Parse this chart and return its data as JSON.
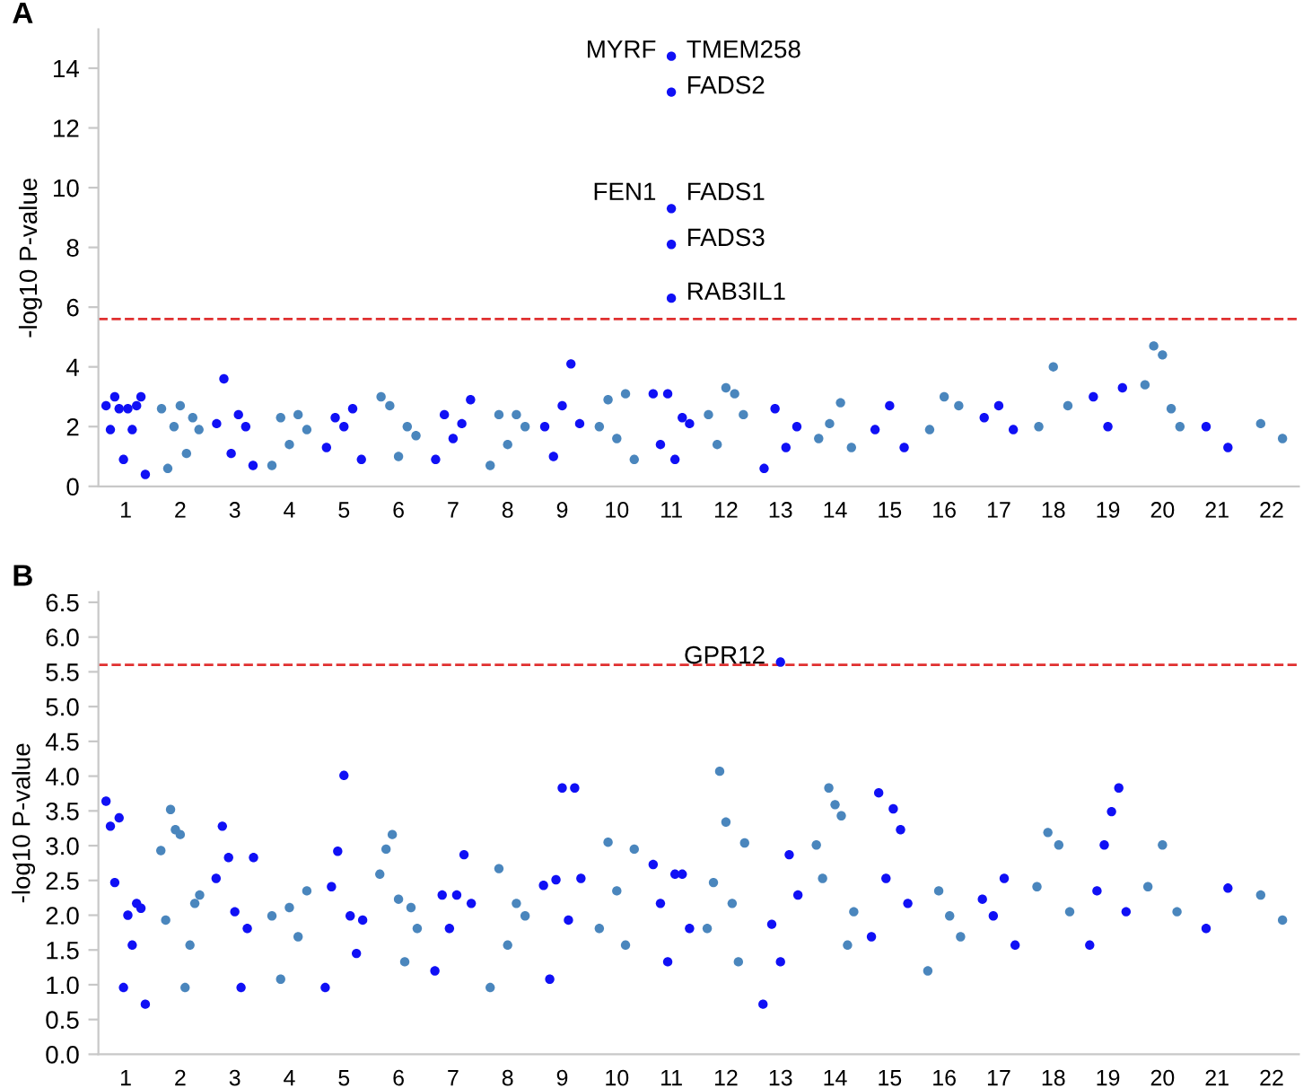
{
  "chart_data": [
    {
      "type": "scatter",
      "title": "A",
      "ylabel": "-log10 P-value",
      "marker": "circle",
      "legend": false,
      "grid": false,
      "categories": [
        "1",
        "2",
        "3",
        "4",
        "5",
        "6",
        "7",
        "8",
        "9",
        "10",
        "11",
        "12",
        "13",
        "14",
        "15",
        "16",
        "17",
        "18",
        "19",
        "20",
        "21",
        "22"
      ],
      "ylim": [
        0,
        15.3
      ],
      "yticks": [
        0,
        2,
        4,
        6,
        8,
        10,
        12,
        14
      ],
      "series": [
        {
          "color": "#1010f5",
          "x": [
            "1",
            "1",
            "1",
            "1",
            "1",
            "1",
            "1",
            "1",
            "1",
            "1",
            "3",
            "3",
            "3",
            "3",
            "3",
            "3",
            "5",
            "5",
            "5",
            "5",
            "5",
            "7",
            "7",
            "7",
            "7",
            "7",
            "9",
            "9",
            "9",
            "9",
            "9",
            "11",
            "11",
            "11",
            "11",
            "11",
            "11",
            "13",
            "13",
            "13",
            "13",
            "15",
            "15",
            "15",
            "17",
            "17",
            "17",
            "19",
            "19",
            "19",
            "21",
            "21"
          ],
          "values": [
            2.7,
            1.9,
            3.0,
            2.6,
            0.9,
            2.6,
            1.9,
            2.7,
            3.0,
            0.4,
            2.1,
            3.6,
            1.1,
            2.4,
            2.0,
            0.7,
            1.3,
            2.3,
            2.0,
            2.6,
            0.9,
            0.9,
            2.4,
            1.6,
            2.1,
            2.9,
            2.0,
            1.0,
            2.7,
            4.1,
            2.1,
            3.1,
            1.4,
            3.1,
            0.9,
            2.3,
            2.1,
            0.6,
            2.6,
            1.3,
            2.0,
            1.9,
            2.7,
            1.3,
            2.3,
            2.7,
            1.9,
            3.0,
            2.0,
            3.3,
            2.0,
            1.3
          ]
        },
        {
          "color": "#4a86bd",
          "x": [
            "2",
            "2",
            "2",
            "2",
            "2",
            "2",
            "2",
            "4",
            "4",
            "4",
            "4",
            "4",
            "6",
            "6",
            "6",
            "6",
            "6",
            "8",
            "8",
            "8",
            "8",
            "8",
            "10",
            "10",
            "10",
            "10",
            "10",
            "12",
            "12",
            "12",
            "12",
            "12",
            "14",
            "14",
            "14",
            "14",
            "16",
            "16",
            "16",
            "18",
            "18",
            "18",
            "20",
            "20",
            "20",
            "20",
            "20",
            "22",
            "22"
          ],
          "values": [
            2.6,
            0.6,
            2.0,
            2.7,
            1.1,
            2.3,
            1.9,
            0.7,
            2.3,
            1.4,
            2.4,
            1.9,
            3.0,
            2.7,
            1.0,
            2.0,
            1.7,
            0.7,
            2.4,
            1.4,
            2.4,
            2.0,
            2.0,
            2.9,
            1.6,
            3.1,
            0.9,
            2.4,
            1.4,
            3.3,
            3.1,
            2.4,
            1.6,
            2.1,
            2.8,
            1.3,
            1.9,
            3.0,
            2.7,
            2.0,
            4.0,
            2.7,
            3.4,
            4.7,
            4.4,
            2.6,
            2.0,
            2.1,
            1.6
          ]
        },
        {
          "color": "#1010f5",
          "x": [
            "11"
          ],
          "values": [
            14.4
          ]
        },
        {
          "color": "#1010f5",
          "x": [
            "11"
          ],
          "values": [
            13.2
          ]
        },
        {
          "color": "#1010f5",
          "x": [
            "11"
          ],
          "values": [
            9.3
          ]
        },
        {
          "color": "#1010f5",
          "x": [
            "11"
          ],
          "values": [
            8.1
          ]
        },
        {
          "color": "#1010f5",
          "x": [
            "11"
          ],
          "values": [
            6.3
          ]
        }
      ],
      "ref_lines": [
        {
          "axis": "y",
          "value": 5.6,
          "color": "#e03030",
          "line_style": "dashed"
        }
      ],
      "annotations": [
        {
          "text": "MYRF",
          "x": "11",
          "y": 14.4
        },
        {
          "text": "TMEM258",
          "x": "11",
          "y": 14.4
        },
        {
          "text": "FADS2",
          "x": "11",
          "y": 13.2
        },
        {
          "text": "FEN1",
          "x": "11",
          "y": 9.3
        },
        {
          "text": "FADS1",
          "x": "11",
          "y": 9.3
        },
        {
          "text": "FADS3",
          "x": "11",
          "y": 8.1
        },
        {
          "text": "RAB3IL1",
          "x": "11",
          "y": 6.3
        }
      ]
    },
    {
      "type": "scatter",
      "title": "B",
      "ylabel": "-log10 P-value",
      "marker": "circle",
      "legend": false,
      "grid": false,
      "categories": [
        "1",
        "2",
        "3",
        "4",
        "5",
        "6",
        "7",
        "8",
        "9",
        "10",
        "11",
        "12",
        "13",
        "14",
        "15",
        "16",
        "17",
        "18",
        "19",
        "20",
        "21",
        "22"
      ],
      "ylim": [
        0,
        6.65
      ],
      "yticks": [
        {
          "value": 0,
          "label": "0.0"
        },
        {
          "value": 0.5,
          "label": "0.5"
        },
        {
          "value": 1,
          "label": "1.0"
        },
        {
          "value": 1.5,
          "label": "1.5"
        },
        {
          "value": 2,
          "label": "2.0"
        },
        {
          "value": 2.5,
          "label": "2.5"
        },
        {
          "value": 3,
          "label": "3.0"
        },
        {
          "value": 3.5,
          "label": "3.5"
        },
        {
          "value": 4,
          "label": "4.0"
        },
        {
          "value": 4.5,
          "label": "4.5"
        },
        {
          "value": 5,
          "label": "5.0"
        },
        {
          "value": 5.5,
          "label": "5.5"
        },
        {
          "value": 6,
          "label": "6.0"
        },
        {
          "value": 6.5,
          "label": "6.5"
        }
      ],
      "series": [
        {
          "color": "#1010f5",
          "x": [
            "1",
            "1",
            "1",
            "1",
            "1",
            "1",
            "1",
            "1",
            "1",
            "1",
            "3",
            "3",
            "3",
            "3",
            "3",
            "3",
            "3",
            "5",
            "5",
            "5",
            "5",
            "5",
            "5",
            "5",
            "7",
            "7",
            "7",
            "7",
            "7",
            "7",
            "9",
            "9",
            "9",
            "9",
            "9",
            "9",
            "9",
            "11",
            "11",
            "11",
            "11",
            "11",
            "11",
            "13",
            "13",
            "13",
            "13",
            "13",
            "15",
            "15",
            "15",
            "15",
            "15",
            "15",
            "17",
            "17",
            "17",
            "17",
            "19",
            "19",
            "19",
            "19",
            "19",
            "19",
            "21",
            "21"
          ],
          "values": [
            3.64,
            3.28,
            2.47,
            3.4,
            0.96,
            2.0,
            1.57,
            2.17,
            2.1,
            0.72,
            2.53,
            3.28,
            2.83,
            2.05,
            0.96,
            1.81,
            2.83,
            0.96,
            2.41,
            2.92,
            4.01,
            1.99,
            1.45,
            1.93,
            1.2,
            2.29,
            1.81,
            2.29,
            2.87,
            2.17,
            2.43,
            1.08,
            2.51,
            3.83,
            1.93,
            3.83,
            2.53,
            2.73,
            2.17,
            1.33,
            2.59,
            2.59,
            1.81,
            0.72,
            1.87,
            1.33,
            2.87,
            2.29,
            1.69,
            3.76,
            2.53,
            3.53,
            3.23,
            2.17,
            2.23,
            1.99,
            2.53,
            1.57,
            1.57,
            2.35,
            3.01,
            3.49,
            3.83,
            2.05,
            1.81,
            2.39
          ]
        },
        {
          "color": "#4a86bd",
          "x": [
            "2",
            "2",
            "2",
            "2",
            "2",
            "2",
            "2",
            "2",
            "2",
            "4",
            "4",
            "4",
            "4",
            "4",
            "6",
            "6",
            "6",
            "6",
            "6",
            "6",
            "6",
            "8",
            "8",
            "8",
            "8",
            "8",
            "10",
            "10",
            "10",
            "10",
            "10",
            "12",
            "12",
            "12",
            "12",
            "12",
            "12",
            "12",
            "14",
            "14",
            "14",
            "14",
            "14",
            "14",
            "14",
            "16",
            "16",
            "16",
            "16",
            "18",
            "18",
            "18",
            "18",
            "20",
            "20",
            "20",
            "22",
            "22"
          ],
          "values": [
            2.93,
            1.93,
            3.52,
            3.23,
            3.16,
            0.96,
            1.57,
            2.17,
            2.29,
            1.99,
            1.08,
            2.11,
            1.69,
            2.35,
            2.59,
            2.95,
            3.16,
            2.23,
            1.33,
            2.11,
            1.81,
            0.96,
            2.67,
            1.57,
            2.17,
            1.99,
            1.81,
            3.05,
            2.35,
            1.57,
            2.95,
            1.81,
            2.47,
            4.07,
            3.34,
            2.17,
            1.33,
            3.04,
            3.01,
            2.53,
            3.83,
            3.59,
            3.43,
            1.57,
            2.05,
            1.2,
            2.35,
            1.99,
            1.69,
            2.41,
            3.19,
            3.01,
            2.05,
            2.41,
            3.01,
            2.05,
            2.29,
            1.93
          ]
        },
        {
          "color": "#1010f5",
          "x": [
            "13"
          ],
          "values": [
            5.64
          ]
        }
      ],
      "ref_lines": [
        {
          "axis": "y",
          "value": 5.6,
          "color": "#e03030",
          "line_style": "dashed"
        }
      ],
      "annotations": [
        {
          "text": "GPR12",
          "x": "13",
          "y": 5.64
        }
      ]
    }
  ]
}
